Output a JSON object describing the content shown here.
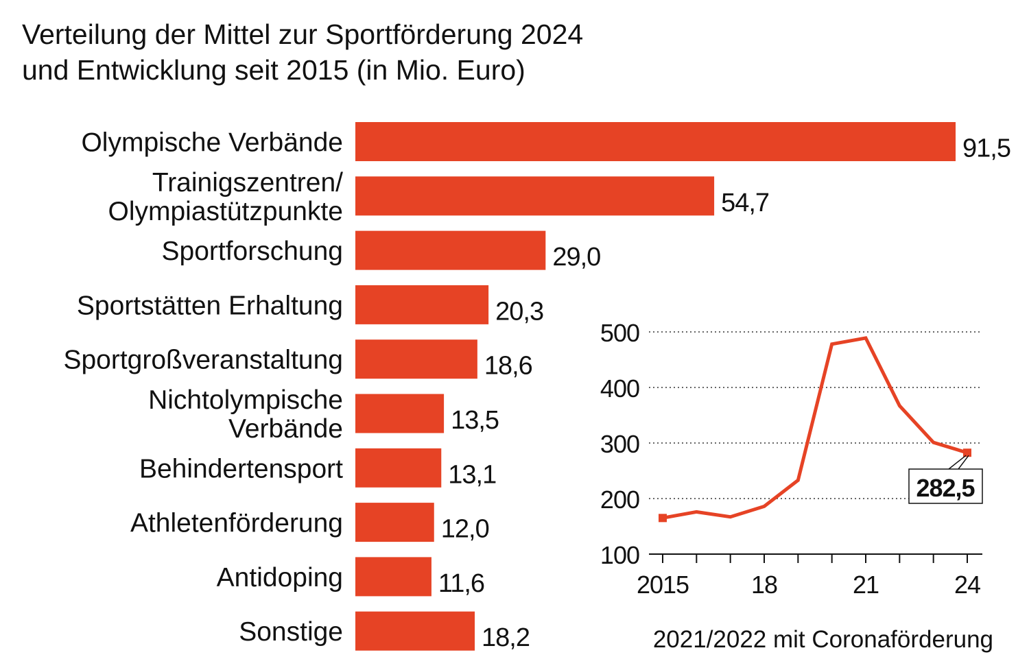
{
  "title": {
    "line1": "Verteilung der Mittel zur Sportförderung 2024",
    "line2": "und Entwicklung seit 2015 (in Mio. Euro)"
  },
  "colors": {
    "bar": "#E64325",
    "line": "#E64325",
    "text": "#111111",
    "grid": "#333333"
  },
  "chart_data": [
    {
      "type": "bar",
      "orientation": "horizontal",
      "title": "Verteilung der Mittel zur Sportförderung 2024 (in Mio. Euro)",
      "categories": [
        [
          "Olympische Verbände"
        ],
        [
          "Trainigszentren/",
          "Olympiastützpunkte"
        ],
        [
          "Sportforschung"
        ],
        [
          "Sportstätten Erhaltung"
        ],
        [
          "Sportgroßveranstaltung"
        ],
        [
          "Nichtolympische",
          "Verbände"
        ],
        [
          "Behindertensport"
        ],
        [
          "Athletenförderung"
        ],
        [
          "Antidoping"
        ],
        [
          "Sonstige"
        ]
      ],
      "values": [
        91.5,
        54.7,
        29.0,
        20.3,
        18.6,
        13.5,
        13.1,
        12.0,
        11.6,
        18.2
      ],
      "value_labels": [
        "91,5",
        "54,7",
        "29,0",
        "20,3",
        "18,6",
        "13,5",
        "13,1",
        "12,0",
        "11,6",
        "18,2"
      ],
      "xlim": [
        0,
        91.5
      ]
    },
    {
      "type": "line",
      "title": "Entwicklung seit 2015",
      "x": [
        2015,
        2016,
        2017,
        2018,
        2019,
        2020,
        2021,
        2022,
        2023,
        2024
      ],
      "values": [
        165,
        176,
        167,
        186,
        233,
        478,
        489,
        367,
        301,
        282.5
      ],
      "ylim": [
        100,
        500
      ],
      "yticks": [
        100,
        200,
        300,
        400,
        500
      ],
      "ytick_labels": [
        "100",
        "200",
        "300",
        "400",
        "500"
      ],
      "xtick_labels": [
        {
          "x": 2015,
          "label": "2015"
        },
        {
          "x": 2018,
          "label": "18"
        },
        {
          "x": 2021,
          "label": "21"
        },
        {
          "x": 2024,
          "label": "24"
        }
      ],
      "grid": true,
      "annotation": {
        "x": 2024,
        "label": "282,5"
      },
      "note": "2021/2022 mit Coronaförderung"
    }
  ]
}
